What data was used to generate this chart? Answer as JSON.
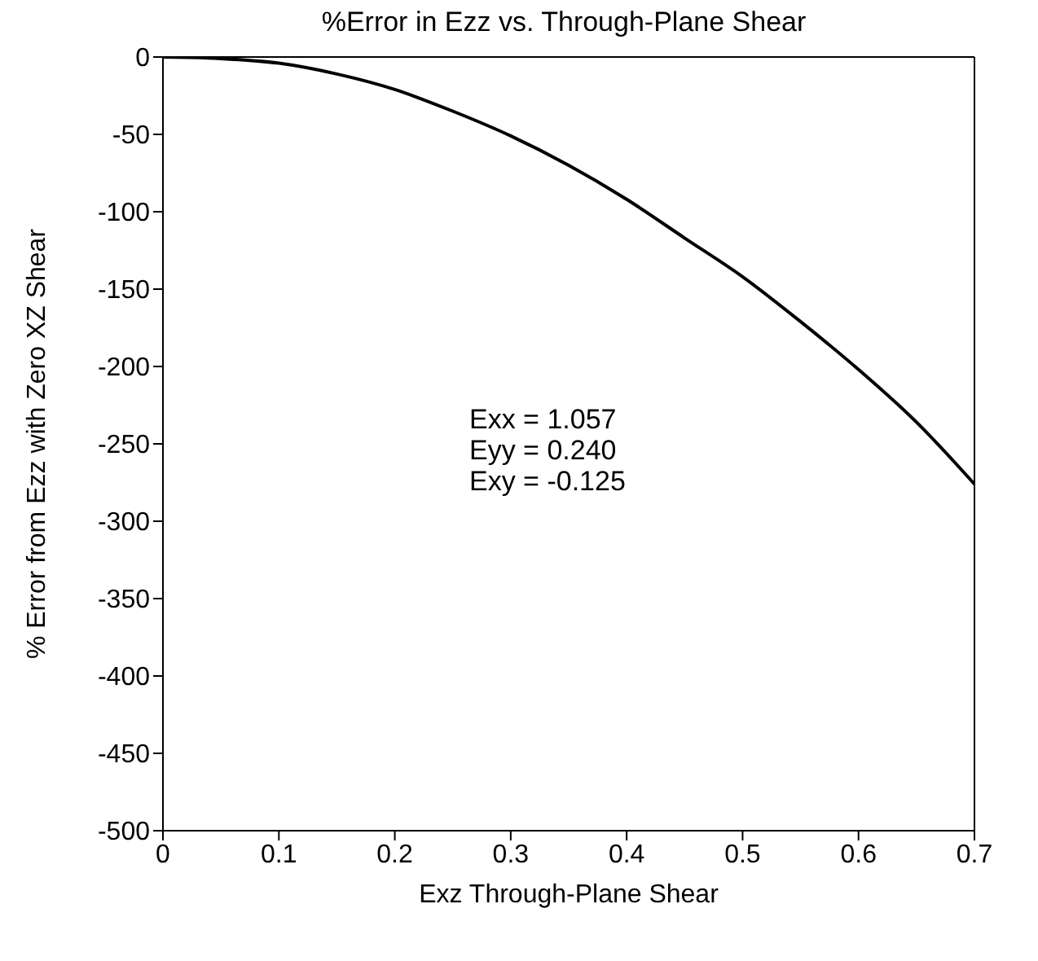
{
  "chart_data": {
    "type": "line",
    "title": "%Error in Ezz vs. Through-Plane Shear",
    "xlabel": "Exz Through-Plane Shear",
    "ylabel": "% Error from Ezz with Zero XZ Shear",
    "x": [
      0,
      0.05,
      0.1,
      0.15,
      0.2,
      0.25,
      0.3,
      0.35,
      0.4,
      0.45,
      0.5,
      0.55,
      0.6,
      0.65,
      0.7
    ],
    "series": [
      {
        "color": "#000000",
        "values": [
          0,
          -1,
          -4,
          -11,
          -21,
          -35,
          -51,
          -70,
          -92,
          -117,
          -142,
          -171,
          -202,
          -236,
          -276
        ]
      }
    ],
    "xlim": [
      0,
      0.7
    ],
    "xticks": [
      0,
      0.1,
      0.2,
      0.3,
      0.4,
      0.5,
      0.6,
      0.7
    ],
    "ylim": [
      -500,
      0
    ],
    "yticks": [
      -500,
      -450,
      -400,
      -350,
      -300,
      -250,
      -200,
      -150,
      -100,
      -50,
      0
    ],
    "annotations": [
      "Exx = 1.057",
      "Eyy = 0.240",
      "Exy = -0.125"
    ],
    "grid": false,
    "legend": false,
    "marker": "none",
    "line_style": "solid"
  }
}
